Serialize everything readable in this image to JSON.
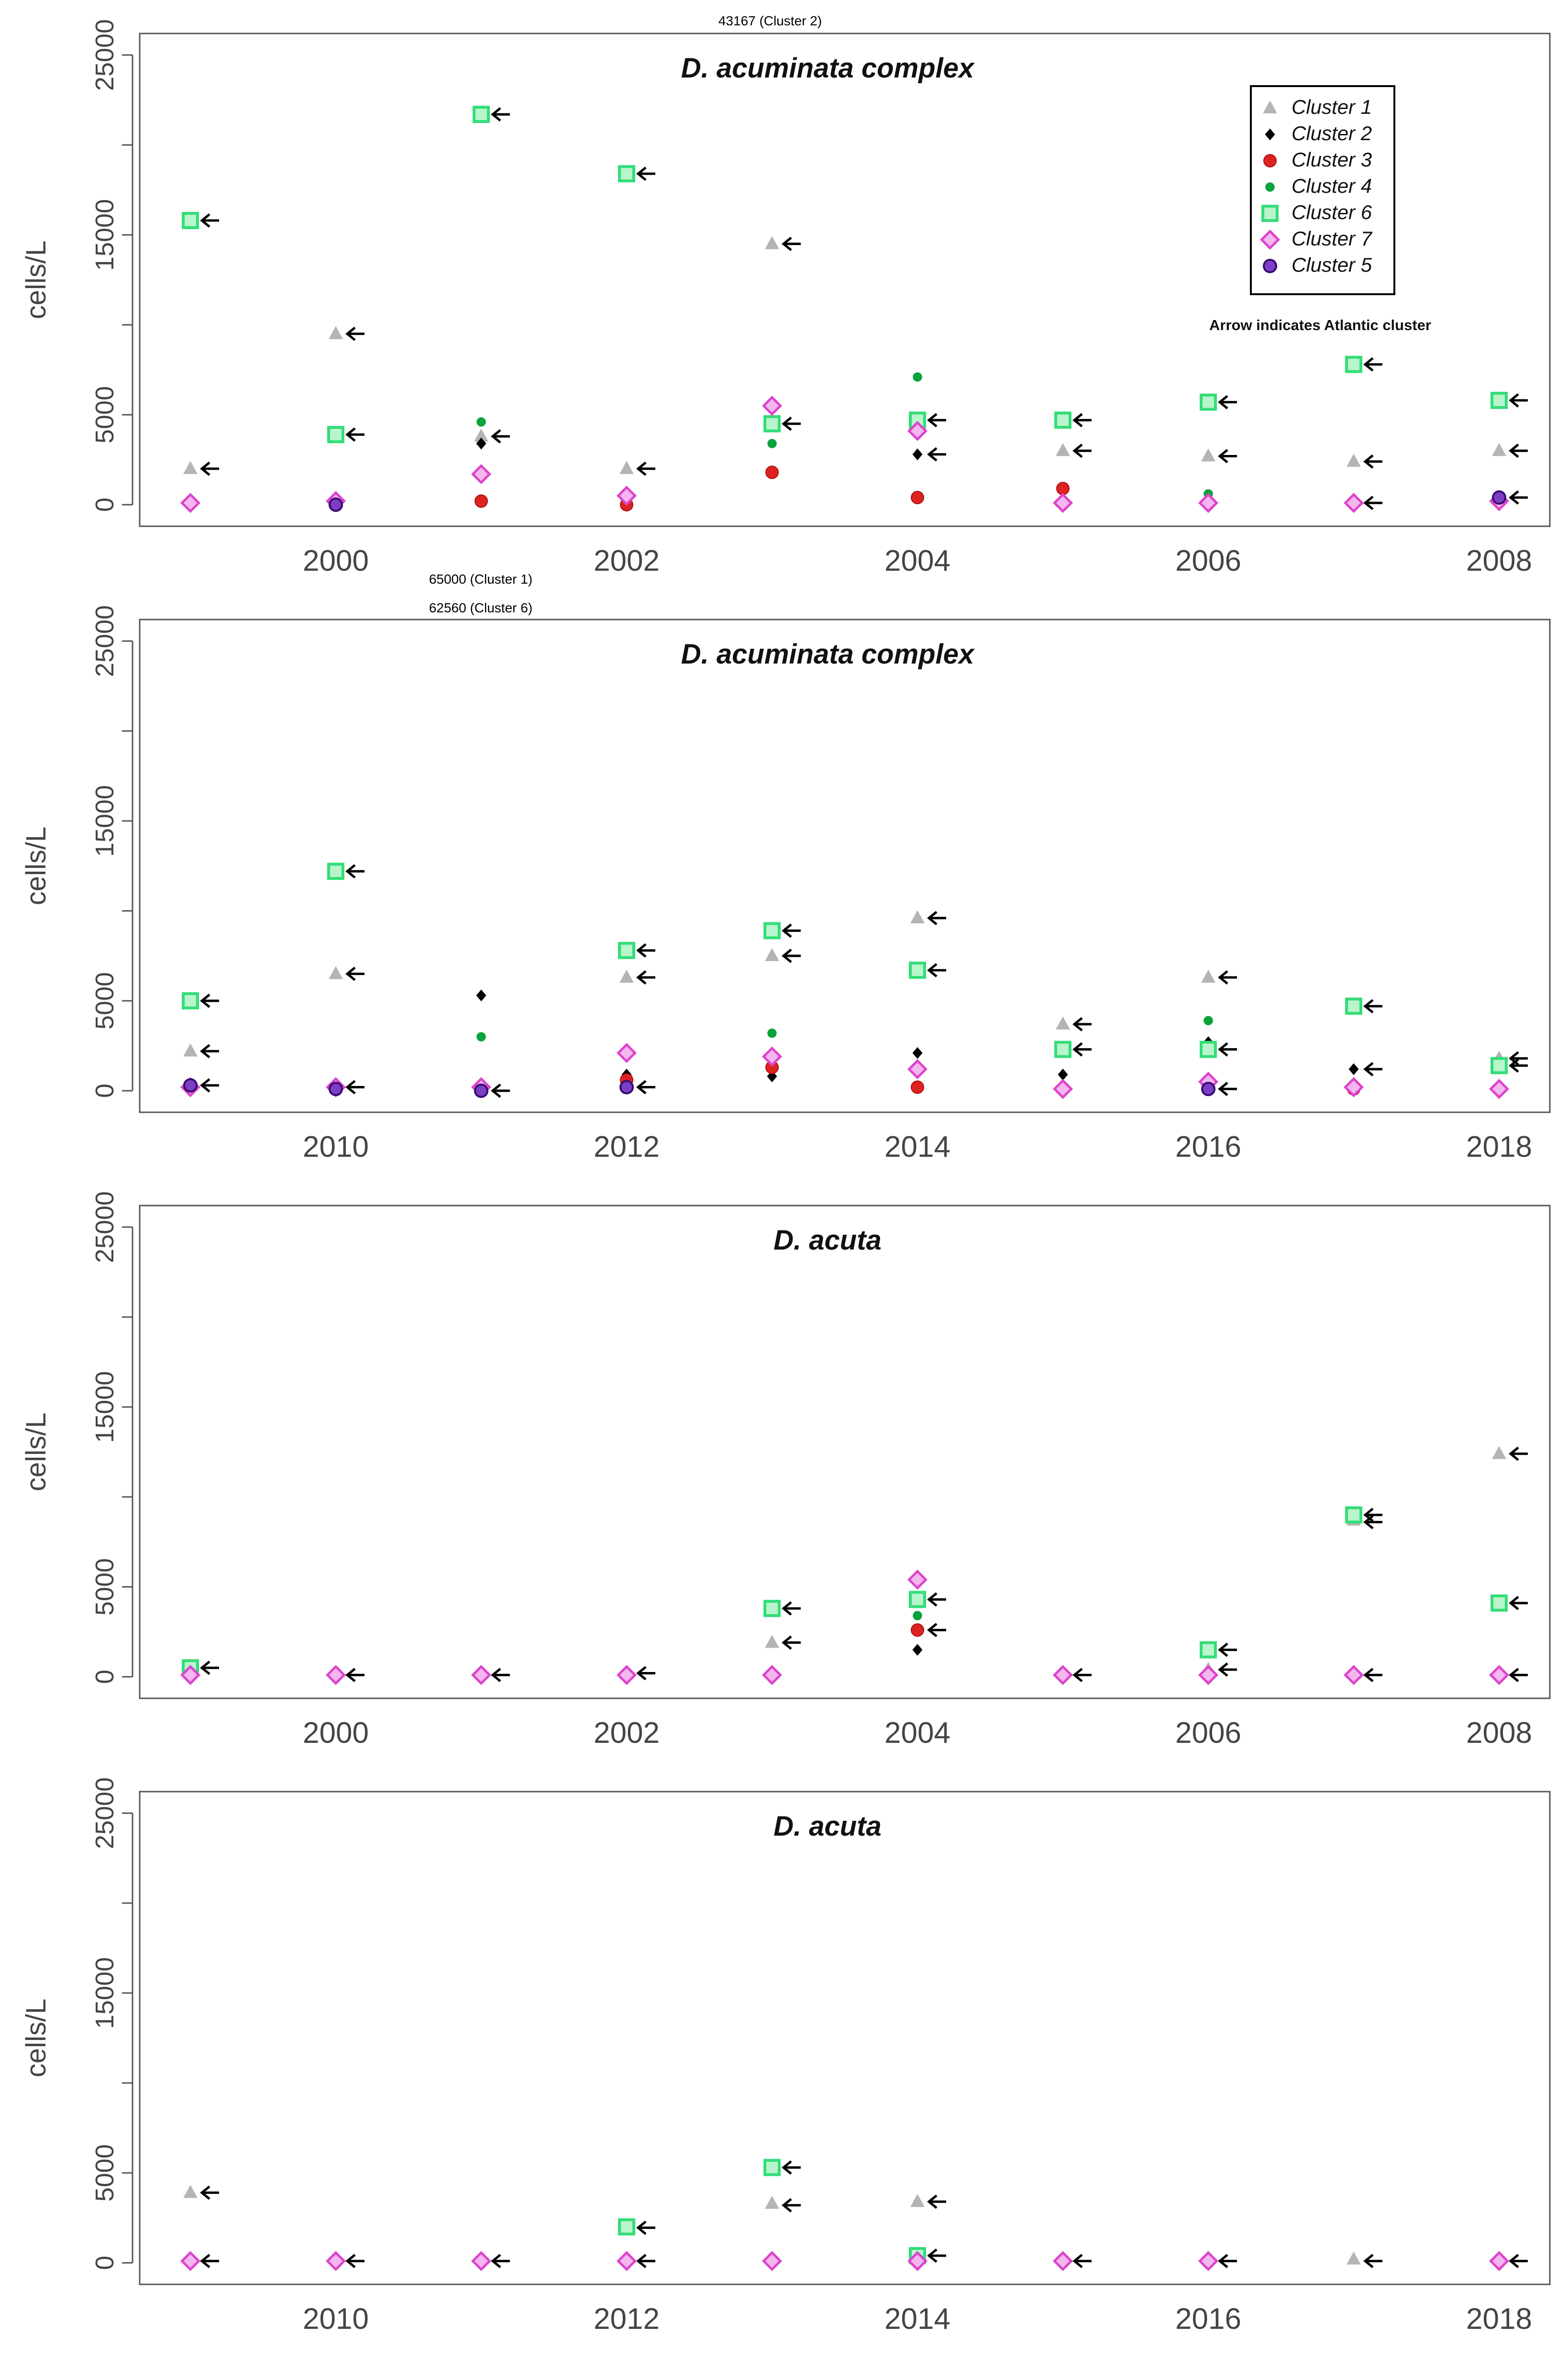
{
  "legend": {
    "items": [
      {
        "name": "Cluster 1",
        "shape": "triangle",
        "color": "#b4b4b4"
      },
      {
        "name": "Cluster 2",
        "shape": "diamond",
        "color": "#000000"
      },
      {
        "name": "Cluster 3",
        "shape": "circle",
        "color": "#dd2222"
      },
      {
        "name": "Cluster 4",
        "shape": "dot",
        "color": "#0aa33a"
      },
      {
        "name": "Cluster 6",
        "shape": "square",
        "color": "#33dd77"
      },
      {
        "name": "Cluster 7",
        "shape": "diamond-open",
        "color": "#dd44cc"
      },
      {
        "name": "Cluster 5",
        "shape": "circle-open",
        "color": "#6a0dad"
      }
    ],
    "note": "Arrow indicates Atlantic cluster"
  },
  "chart_data": [
    {
      "type": "scatter",
      "title": "D. acuminata complex",
      "ylabel": "cells/L",
      "ylim": [
        0,
        25000
      ],
      "yticks": [
        0,
        5000,
        15000,
        25000
      ],
      "xlim": [
        1999,
        2008
      ],
      "xticks": [
        2000,
        2002,
        2004,
        2006,
        2008
      ],
      "top_annotations": [
        "43167 (Cluster 2)"
      ],
      "series": [
        {
          "name": "Cluster 1",
          "points": [
            [
              1999,
              2000
            ],
            [
              2000,
              9500
            ],
            [
              2001,
              3800
            ],
            [
              2002,
              2000
            ],
            [
              2003,
              14500
            ],
            [
              2005,
              3000
            ],
            [
              2006,
              2700
            ],
            [
              2007,
              2400
            ],
            [
              2008,
              3000
            ]
          ]
        },
        {
          "name": "Cluster 2",
          "points": [
            [
              2001,
              3400
            ],
            [
              2004,
              2800
            ]
          ]
        },
        {
          "name": "Cluster 3",
          "points": [
            [
              2001,
              200
            ],
            [
              2002,
              0
            ],
            [
              2003,
              1800
            ],
            [
              2004,
              400
            ],
            [
              2005,
              900
            ]
          ]
        },
        {
          "name": "Cluster 4",
          "points": [
            [
              2001,
              4600
            ],
            [
              2003,
              3400
            ],
            [
              2004,
              7100
            ],
            [
              2006,
              600
            ]
          ]
        },
        {
          "name": "Cluster 6",
          "points": [
            [
              1999,
              15800
            ],
            [
              2000,
              3900
            ],
            [
              2001,
              21700
            ],
            [
              2002,
              18400
            ],
            [
              2003,
              4500
            ],
            [
              2004,
              4700
            ],
            [
              2005,
              4700
            ],
            [
              2006,
              5700
            ],
            [
              2007,
              7800
            ],
            [
              2008,
              5800
            ]
          ]
        },
        {
          "name": "Cluster 7",
          "points": [
            [
              1999,
              100
            ],
            [
              2000,
              200
            ],
            [
              2001,
              1700
            ],
            [
              2002,
              500
            ],
            [
              2003,
              5500
            ],
            [
              2004,
              4100
            ],
            [
              2005,
              100
            ],
            [
              2006,
              100
            ],
            [
              2007,
              100
            ],
            [
              2008,
              200
            ]
          ]
        },
        {
          "name": "Cluster 5",
          "points": [
            [
              2000,
              0
            ],
            [
              2008,
              400
            ]
          ]
        }
      ],
      "arrows": [
        [
          1999,
          2000
        ],
        [
          1999,
          15800
        ],
        [
          2000,
          9500
        ],
        [
          2000,
          3900
        ],
        [
          2001,
          21700
        ],
        [
          2001,
          3800
        ],
        [
          2002,
          18400
        ],
        [
          2002,
          2000
        ],
        [
          2003,
          14500
        ],
        [
          2003,
          4500
        ],
        [
          2004,
          4700
        ],
        [
          2004,
          2800
        ],
        [
          2005,
          4700
        ],
        [
          2005,
          3000
        ],
        [
          2006,
          5700
        ],
        [
          2006,
          2700
        ],
        [
          2007,
          7800
        ],
        [
          2007,
          2400
        ],
        [
          2007,
          100
        ],
        [
          2008,
          5800
        ],
        [
          2008,
          3000
        ],
        [
          2008,
          400
        ]
      ]
    },
    {
      "type": "scatter",
      "title": "D. acuminata complex",
      "ylabel": "cells/L",
      "ylim": [
        0,
        25000
      ],
      "yticks": [
        0,
        5000,
        15000,
        25000
      ],
      "xlim": [
        2009,
        2018
      ],
      "xticks": [
        2010,
        2012,
        2014,
        2016,
        2018
      ],
      "top_annotations": [
        "65000 (Cluster 1)",
        "62560 (Cluster 6)"
      ],
      "series": [
        {
          "name": "Cluster 1",
          "points": [
            [
              2009,
              2200
            ],
            [
              2010,
              6500
            ],
            [
              2012,
              6300
            ],
            [
              2013,
              7500
            ],
            [
              2014,
              9600
            ],
            [
              2015,
              3700
            ],
            [
              2016,
              6300
            ],
            [
              2018,
              1800
            ]
          ]
        },
        {
          "name": "Cluster 2",
          "points": [
            [
              2011,
              5300
            ],
            [
              2012,
              900
            ],
            [
              2013,
              800
            ],
            [
              2014,
              2100
            ],
            [
              2015,
              900
            ],
            [
              2016,
              2700
            ],
            [
              2017,
              1200
            ]
          ]
        },
        {
          "name": "Cluster 3",
          "points": [
            [
              2012,
              600
            ],
            [
              2013,
              1300
            ],
            [
              2014,
              200
            ],
            [
              2017,
              100
            ]
          ]
        },
        {
          "name": "Cluster 4",
          "points": [
            [
              2011,
              3000
            ],
            [
              2013,
              3200
            ],
            [
              2016,
              3900
            ]
          ]
        },
        {
          "name": "Cluster 6",
          "points": [
            [
              2009,
              5000
            ],
            [
              2010,
              12200
            ],
            [
              2012,
              7800
            ],
            [
              2013,
              8900
            ],
            [
              2014,
              6700
            ],
            [
              2015,
              2300
            ],
            [
              2016,
              2300
            ],
            [
              2017,
              4700
            ],
            [
              2018,
              1400
            ]
          ]
        },
        {
          "name": "Cluster 7",
          "points": [
            [
              2009,
              200
            ],
            [
              2010,
              200
            ],
            [
              2011,
              200
            ],
            [
              2012,
              2100
            ],
            [
              2013,
              1900
            ],
            [
              2014,
              1200
            ],
            [
              2015,
              100
            ],
            [
              2016,
              500
            ],
            [
              2017,
              200
            ],
            [
              2018,
              100
            ]
          ]
        },
        {
          "name": "Cluster 5",
          "points": [
            [
              2009,
              300
            ],
            [
              2010,
              100
            ],
            [
              2011,
              0
            ],
            [
              2012,
              200
            ],
            [
              2016,
              100
            ]
          ]
        }
      ],
      "arrows": [
        [
          2009,
          5000
        ],
        [
          2009,
          2200
        ],
        [
          2009,
          300
        ],
        [
          2010,
          12200
        ],
        [
          2010,
          6500
        ],
        [
          2010,
          200
        ],
        [
          2011,
          0
        ],
        [
          2012,
          7800
        ],
        [
          2012,
          6300
        ],
        [
          2012,
          200
        ],
        [
          2013,
          8900
        ],
        [
          2013,
          7500
        ],
        [
          2014,
          9600
        ],
        [
          2014,
          6700
        ],
        [
          2015,
          3700
        ],
        [
          2015,
          2300
        ],
        [
          2016,
          6300
        ],
        [
          2016,
          2300
        ],
        [
          2016,
          100
        ],
        [
          2017,
          4700
        ],
        [
          2017,
          1200
        ],
        [
          2018,
          1800
        ],
        [
          2018,
          1400
        ]
      ]
    },
    {
      "type": "scatter",
      "title": "D. acuta",
      "ylabel": "cells/L",
      "ylim": [
        0,
        25000
      ],
      "yticks": [
        0,
        5000,
        15000,
        25000
      ],
      "xlim": [
        1999,
        2008
      ],
      "xticks": [
        2000,
        2002,
        2004,
        2006,
        2008
      ],
      "top_annotations": [],
      "series": [
        {
          "name": "Cluster 1",
          "points": [
            [
              1999,
              600
            ],
            [
              2002,
              200
            ],
            [
              2003,
              1900
            ],
            [
              2006,
              400
            ],
            [
              2007,
              8700
            ],
            [
              2008,
              12400
            ]
          ]
        },
        {
          "name": "Cluster 2",
          "points": [
            [
              2004,
              1500
            ]
          ]
        },
        {
          "name": "Cluster 3",
          "points": [
            [
              2004,
              2600
            ]
          ]
        },
        {
          "name": "Cluster 4",
          "points": [
            [
              2004,
              3400
            ]
          ]
        },
        {
          "name": "Cluster 6",
          "points": [
            [
              1999,
              500
            ],
            [
              2003,
              3800
            ],
            [
              2004,
              4300
            ],
            [
              2006,
              1500
            ],
            [
              2007,
              9000
            ],
            [
              2008,
              4100
            ]
          ]
        },
        {
          "name": "Cluster 7",
          "points": [
            [
              1999,
              100
            ],
            [
              2000,
              100
            ],
            [
              2001,
              100
            ],
            [
              2002,
              100
            ],
            [
              2003,
              100
            ],
            [
              2004,
              5400
            ],
            [
              2005,
              100
            ],
            [
              2006,
              100
            ],
            [
              2007,
              100
            ],
            [
              2008,
              100
            ]
          ]
        }
      ],
      "arrows": [
        [
          1999,
          500
        ],
        [
          2000,
          100
        ],
        [
          2001,
          100
        ],
        [
          2002,
          200
        ],
        [
          2003,
          3800
        ],
        [
          2003,
          1900
        ],
        [
          2004,
          4300
        ],
        [
          2004,
          2600
        ],
        [
          2005,
          100
        ],
        [
          2006,
          1500
        ],
        [
          2006,
          400
        ],
        [
          2007,
          9000
        ],
        [
          2007,
          8600
        ],
        [
          2007,
          100
        ],
        [
          2008,
          12400
        ],
        [
          2008,
          4100
        ],
        [
          2008,
          100
        ]
      ]
    },
    {
      "type": "scatter",
      "title": "D. acuta",
      "ylabel": "cells/L",
      "ylim": [
        0,
        25000
      ],
      "yticks": [
        0,
        5000,
        15000,
        25000
      ],
      "xlim": [
        2009,
        2018
      ],
      "xticks": [
        2010,
        2012,
        2014,
        2016,
        2018
      ],
      "top_annotations": [],
      "series": [
        {
          "name": "Cluster 1",
          "points": [
            [
              2009,
              3900
            ],
            [
              2013,
              3300
            ],
            [
              2014,
              3400
            ],
            [
              2017,
              200
            ]
          ]
        },
        {
          "name": "Cluster 4",
          "points": [
            [
              2012,
              1900
            ]
          ]
        },
        {
          "name": "Cluster 6",
          "points": [
            [
              2012,
              2000
            ],
            [
              2013,
              5300
            ],
            [
              2014,
              400
            ]
          ]
        },
        {
          "name": "Cluster 7",
          "points": [
            [
              2009,
              100
            ],
            [
              2010,
              100
            ],
            [
              2011,
              100
            ],
            [
              2012,
              100
            ],
            [
              2013,
              100
            ],
            [
              2014,
              100
            ],
            [
              2015,
              100
            ],
            [
              2016,
              100
            ],
            [
              2018,
              100
            ]
          ]
        }
      ],
      "arrows": [
        [
          2009,
          3900
        ],
        [
          2009,
          100
        ],
        [
          2010,
          100
        ],
        [
          2011,
          100
        ],
        [
          2012,
          1950
        ],
        [
          2012,
          100
        ],
        [
          2013,
          5300
        ],
        [
          2013,
          3200
        ],
        [
          2014,
          3400
        ],
        [
          2014,
          400
        ],
        [
          2015,
          100
        ],
        [
          2016,
          100
        ],
        [
          2017,
          100
        ],
        [
          2018,
          100
        ]
      ]
    }
  ]
}
